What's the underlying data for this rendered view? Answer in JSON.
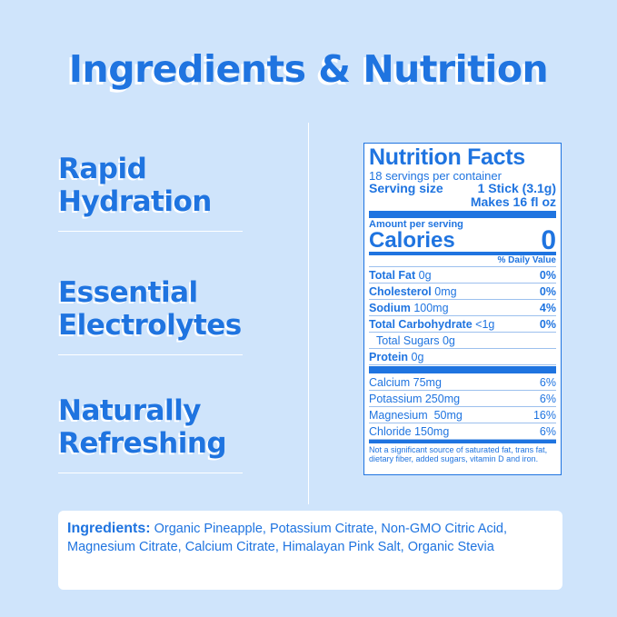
{
  "title": "Ingredients & Nutrition",
  "features": [
    "Rapid\nHydration",
    "Essential\nElectrolytes",
    "Naturally\nRefreshing"
  ],
  "colors": {
    "background": "#cfe4fb",
    "accent": "#1f74e0"
  },
  "nutrition": {
    "heading": "Nutrition Facts",
    "servings": "18 servings per container",
    "serving_size_label": "Serving size",
    "serving_size_value": "1 Stick (3.1g)",
    "makes": "Makes 16 fl oz",
    "amount_per_serving": "Amount per serving",
    "calories_label": "Calories",
    "calories_value": "0",
    "dv_header": "% Daily Value",
    "rows": [
      {
        "name": "Total Fat",
        "amount": "0g",
        "dv": "0%",
        "bold": true,
        "indent": false
      },
      {
        "name": "Cholesterol",
        "amount": "0mg",
        "dv": "0%",
        "bold": true,
        "indent": false
      },
      {
        "name": "Sodium",
        "amount": "100mg",
        "dv": "4%",
        "bold": true,
        "indent": false
      },
      {
        "name": "Total Carbohydrate",
        "amount": "<1g",
        "dv": "0%",
        "bold": true,
        "indent": false
      },
      {
        "name": "Total Sugars",
        "amount": "0g",
        "dv": "",
        "bold": false,
        "indent": true
      },
      {
        "name": "Protein",
        "amount": "0g",
        "dv": "",
        "bold": true,
        "indent": false
      }
    ],
    "minerals": [
      {
        "name": "Calcium",
        "amount": "75mg",
        "dv": "6%"
      },
      {
        "name": "Potassium",
        "amount": "250mg",
        "dv": "6%"
      },
      {
        "name": "Magnesium",
        "amount": " 50mg",
        "dv": "16%"
      },
      {
        "name": "Chloride",
        "amount": "150mg",
        "dv": "6%"
      }
    ],
    "footnote": "Not a significant source of saturated fat, trans fat, dietary fiber, added sugars, vitamin D and iron."
  },
  "ingredients": {
    "label": "Ingredients:",
    "text": "Organic Pineapple, Potassium Citrate, Non-GMO Citric Acid, Magnesium Citrate, Calcium Citrate, Himalayan Pink Salt, Organic Stevia"
  }
}
